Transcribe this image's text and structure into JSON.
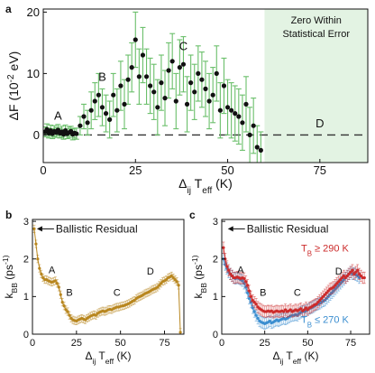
{
  "chart_data": [
    {
      "panel": "a",
      "type": "scatter",
      "xlabel": "Δ_ij T_eff (K)",
      "ylabel": "ΔF (10^-2 eV)",
      "xlim": [
        0,
        88
      ],
      "ylim": [
        -4.5,
        20.5
      ],
      "xticks": [
        0,
        25,
        50,
        75
      ],
      "yticks": [
        0,
        10,
        20
      ],
      "grid": false,
      "shaded_region": {
        "x_from": 60,
        "x_to": 88,
        "color": "#e3f3e3",
        "label_lines": [
          "Zero Within",
          "Statistical Error"
        ]
      },
      "reference_line": {
        "y": 0,
        "style": "dashed"
      },
      "region_labels": [
        {
          "text": "A",
          "x": 4,
          "y": 2.5
        },
        {
          "text": "B",
          "x": 16,
          "y": 8.8
        },
        {
          "text": "C",
          "x": 38,
          "y": 13.8
        },
        {
          "text": "D",
          "x": 75,
          "y": 1.2
        }
      ],
      "colors": {
        "marker": "#111111",
        "errorbar": "#6abf6a",
        "shade": "#e3f3e3"
      },
      "x": [
        0.5,
        1,
        1.5,
        2,
        2.5,
        3,
        3.5,
        4,
        4.5,
        5,
        5.5,
        6,
        6.5,
        7,
        7.5,
        8,
        8.5,
        9,
        10,
        11,
        12,
        13,
        14,
        15,
        16,
        17,
        18,
        19,
        20,
        21,
        22,
        23,
        24,
        25,
        26,
        27,
        28,
        29,
        30,
        31,
        32,
        33,
        34,
        35,
        36,
        37,
        38,
        39,
        40,
        41,
        42,
        43,
        44,
        45,
        46,
        47,
        48,
        49,
        50,
        51,
        52,
        53,
        54,
        55,
        56,
        57,
        58,
        59
      ],
      "y": [
        0.5,
        0.9,
        0.3,
        0.7,
        0.2,
        0.6,
        0.4,
        0.8,
        0.3,
        0.5,
        0.1,
        0.7,
        0.2,
        0.4,
        0.6,
        0.1,
        0.3,
        0.2,
        1.5,
        3.0,
        2.0,
        4.0,
        5.5,
        6.5,
        4.5,
        3.5,
        2.5,
        6.5,
        4.0,
        8.0,
        5.0,
        9.0,
        11.0,
        15.5,
        9.5,
        13.0,
        9.5,
        8.0,
        7.0,
        4.5,
        8.5,
        6.0,
        10.5,
        12.0,
        5.5,
        11.0,
        11.5,
        5.0,
        8.5,
        7.0,
        10.0,
        9.0,
        7.5,
        5.5,
        6.5,
        10.0,
        4.0,
        8.0,
        4.5,
        4.0,
        3.5,
        3.0,
        2.0,
        5.0,
        0.0,
        1.5,
        -2.0,
        -2.5
      ],
      "err": [
        0.8,
        0.9,
        0.8,
        0.9,
        0.8,
        0.9,
        0.8,
        0.9,
        0.8,
        0.9,
        0.8,
        0.9,
        0.8,
        0.9,
        0.8,
        0.9,
        0.8,
        0.9,
        1.5,
        2.0,
        2.0,
        3.0,
        3.0,
        3.5,
        3.0,
        3.0,
        3.0,
        3.5,
        3.5,
        4.0,
        4.0,
        4.0,
        4.0,
        4.5,
        4.5,
        4.5,
        4.5,
        4.5,
        4.5,
        4.5,
        4.5,
        4.5,
        4.5,
        4.5,
        4.5,
        4.5,
        4.5,
        4.5,
        4.5,
        4.5,
        4.5,
        4.5,
        4.5,
        4.5,
        4.5,
        4.5,
        4.5,
        4.5,
        4.5,
        4.5,
        4.5,
        4.5,
        4.5,
        4.5,
        4.5,
        4.5,
        3.5,
        3.0
      ]
    },
    {
      "panel": "b",
      "type": "line",
      "xlabel": "Δ_ij T_eff (K)",
      "ylabel": "k_BB (ps^-1)",
      "xlim": [
        0,
        86
      ],
      "ylim": [
        0,
        3.05
      ],
      "xticks": [
        0,
        25,
        50,
        75
      ],
      "yticks": [
        0,
        1,
        2,
        3
      ],
      "grid": false,
      "annotation": {
        "text": "Ballistic Residual",
        "arrow_to_x": 2,
        "arrow_to_y": 2.8
      },
      "region_labels": [
        {
          "text": "A",
          "x": 11,
          "y": 1.62
        },
        {
          "text": "B",
          "x": 21,
          "y": 1.02
        },
        {
          "text": "C",
          "x": 48,
          "y": 1.02
        },
        {
          "text": "D",
          "x": 67,
          "y": 1.58
        }
      ],
      "colors": {
        "series": "#b8861e"
      },
      "series": [
        {
          "x": [
            1,
            2,
            3,
            4,
            5,
            6,
            7,
            8,
            9,
            10,
            11,
            12,
            13,
            14,
            15,
            16,
            17,
            18,
            19,
            20,
            21,
            22,
            23,
            24,
            25,
            26,
            27,
            28,
            29,
            30,
            31,
            32,
            33,
            34,
            35,
            36,
            37,
            38,
            39,
            40,
            41,
            42,
            43,
            44,
            45,
            46,
            47,
            48,
            49,
            50,
            51,
            52,
            53,
            54,
            55,
            56,
            57,
            58,
            59,
            60,
            61,
            62,
            63,
            64,
            65,
            66,
            67,
            68,
            69,
            70,
            71,
            72,
            73,
            74,
            75,
            76,
            77,
            78,
            79,
            80,
            81,
            82,
            83,
            84
          ],
          "y": [
            2.8,
            2.4,
            2.0,
            1.75,
            1.6,
            1.5,
            1.45,
            1.45,
            1.42,
            1.4,
            1.38,
            1.4,
            1.42,
            1.35,
            1.25,
            1.05,
            0.85,
            0.75,
            0.65,
            0.6,
            0.5,
            0.42,
            0.38,
            0.36,
            0.35,
            0.38,
            0.4,
            0.42,
            0.4,
            0.38,
            0.42,
            0.45,
            0.48,
            0.5,
            0.52,
            0.5,
            0.55,
            0.58,
            0.6,
            0.62,
            0.6,
            0.62,
            0.65,
            0.66,
            0.65,
            0.68,
            0.7,
            0.72,
            0.72,
            0.74,
            0.75,
            0.76,
            0.78,
            0.8,
            0.82,
            0.85,
            0.88,
            0.9,
            0.95,
            0.98,
            1.0,
            1.02,
            1.05,
            1.08,
            1.1,
            1.12,
            1.15,
            1.18,
            1.2,
            1.22,
            1.25,
            1.3,
            1.35,
            1.4,
            1.42,
            1.45,
            1.5,
            1.52,
            1.55,
            1.5,
            1.45,
            1.4,
            1.3,
            0.05
          ],
          "err": 0.1
        }
      ]
    },
    {
      "panel": "c",
      "type": "line",
      "xlabel": "Δ_ij T_eff (K)",
      "ylabel": "k_BB (ps^-1)",
      "xlim": [
        0,
        86
      ],
      "ylim": [
        0,
        3.05
      ],
      "xticks": [
        0,
        25,
        50,
        75
      ],
      "yticks": [
        0,
        1,
        2,
        3
      ],
      "grid": false,
      "annotation": {
        "text": "Ballistic Residual",
        "arrow_to_x": 3,
        "arrow_to_y": 2.8
      },
      "region_labels": [
        {
          "text": "A",
          "x": 11,
          "y": 1.62
        },
        {
          "text": "B",
          "x": 24,
          "y": 1.02
        },
        {
          "text": "C",
          "x": 44,
          "y": 1.02
        },
        {
          "text": "D",
          "x": 68,
          "y": 1.58
        }
      ],
      "colors": {
        "hot": "#cc2b2b",
        "cold": "#3b8ed0"
      },
      "series": [
        {
          "name": "T_B ≥ 290 K",
          "legend_pos": {
            "x": 60,
            "y": 2.2
          },
          "x": [
            1,
            2,
            3,
            4,
            5,
            6,
            7,
            8,
            9,
            10,
            11,
            12,
            13,
            14,
            15,
            16,
            17,
            18,
            19,
            20,
            21,
            22,
            23,
            24,
            25,
            26,
            27,
            28,
            29,
            30,
            31,
            32,
            33,
            34,
            35,
            36,
            37,
            38,
            39,
            40,
            41,
            42,
            43,
            44,
            45,
            46,
            47,
            48,
            49,
            50,
            51,
            52,
            53,
            54,
            55,
            56,
            57,
            58,
            59,
            60,
            61,
            62,
            63,
            64,
            65,
            66,
            67,
            68,
            69,
            70,
            71,
            72,
            73,
            74,
            75,
            76,
            77,
            78,
            79,
            80,
            81,
            82,
            83
          ],
          "y": [
            2.3,
            2.0,
            1.8,
            1.7,
            1.6,
            1.55,
            1.5,
            1.5,
            1.52,
            1.5,
            1.48,
            1.5,
            1.48,
            1.4,
            1.3,
            1.15,
            1.0,
            0.9,
            0.85,
            0.8,
            0.72,
            0.68,
            0.65,
            0.62,
            0.6,
            0.6,
            0.62,
            0.6,
            0.62,
            0.58,
            0.6,
            0.62,
            0.6,
            0.6,
            0.62,
            0.6,
            0.65,
            0.6,
            0.62,
            0.65,
            0.6,
            0.62,
            0.65,
            0.62,
            0.65,
            0.68,
            0.62,
            0.65,
            0.7,
            0.65,
            0.7,
            0.72,
            0.75,
            0.78,
            0.8,
            0.85,
            0.9,
            0.95,
            1.0,
            1.05,
            1.1,
            1.15,
            1.2,
            1.22,
            1.25,
            1.3,
            1.35,
            1.4,
            1.45,
            1.5,
            1.55,
            1.5,
            1.55,
            1.6,
            1.65,
            1.7,
            1.6,
            1.65,
            1.7,
            1.6,
            1.55,
            1.5,
            1.5
          ],
          "err": 0.15
        },
        {
          "name": "T_B ≤ 270 K",
          "legend_pos": {
            "x": 60,
            "y": 0.3
          },
          "x": [
            1,
            2,
            3,
            4,
            5,
            6,
            7,
            8,
            9,
            10,
            11,
            12,
            13,
            14,
            15,
            16,
            17,
            18,
            19,
            20,
            21,
            22,
            23,
            24,
            25,
            26,
            27,
            28,
            29,
            30,
            31,
            32,
            33,
            34,
            35,
            36,
            37,
            38,
            39,
            40,
            41,
            42,
            43,
            44,
            45,
            46,
            47,
            48,
            49,
            50,
            51,
            52,
            53,
            54,
            55,
            56,
            57,
            58,
            59,
            60,
            61,
            62,
            63,
            64,
            65,
            66,
            67,
            68,
            69,
            70,
            71,
            72,
            73,
            74,
            75,
            76,
            77,
            78,
            79,
            80
          ],
          "y": [
            2.0,
            1.85,
            1.75,
            1.65,
            1.6,
            1.55,
            1.5,
            1.48,
            1.5,
            1.48,
            1.45,
            1.42,
            1.35,
            1.25,
            1.1,
            0.95,
            0.85,
            0.7,
            0.6,
            0.5,
            0.42,
            0.35,
            0.32,
            0.3,
            0.28,
            0.3,
            0.32,
            0.35,
            0.3,
            0.32,
            0.35,
            0.38,
            0.35,
            0.38,
            0.4,
            0.42,
            0.4,
            0.42,
            0.45,
            0.48,
            0.5,
            0.5,
            0.52,
            0.5,
            0.55,
            0.58,
            0.6,
            0.6,
            0.62,
            0.65,
            0.68,
            0.7,
            0.72,
            0.75,
            0.78,
            0.8,
            0.82,
            0.85,
            0.88,
            0.9,
            0.95,
            1.0,
            1.05,
            1.1,
            1.15,
            1.2,
            1.25,
            1.3,
            1.35,
            1.4,
            1.45,
            1.5,
            1.55,
            1.6,
            1.65,
            1.6,
            1.62,
            1.58,
            1.55,
            1.5
          ],
          "err": 0.15
        }
      ]
    }
  ]
}
